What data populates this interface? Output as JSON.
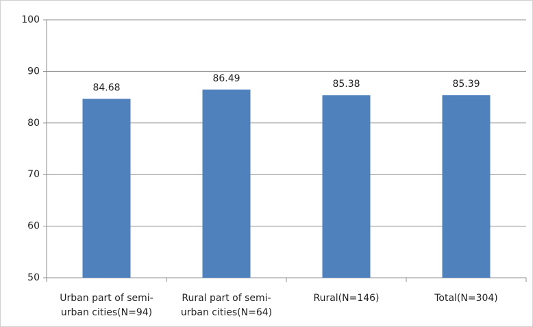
{
  "chart_data": {
    "type": "bar",
    "categories": [
      "Urban part of semi-\nurban cities(N=94)",
      "Rural part of semi-\nurban cities(N=64)",
      "Rural(N=146)",
      "Total(N=304)"
    ],
    "values": [
      84.68,
      86.49,
      85.38,
      85.39
    ],
    "color": "#4f81bd",
    "ylim": [
      50,
      100
    ],
    "yticks": [
      50,
      60,
      70,
      80,
      90,
      100
    ],
    "grid": true
  }
}
